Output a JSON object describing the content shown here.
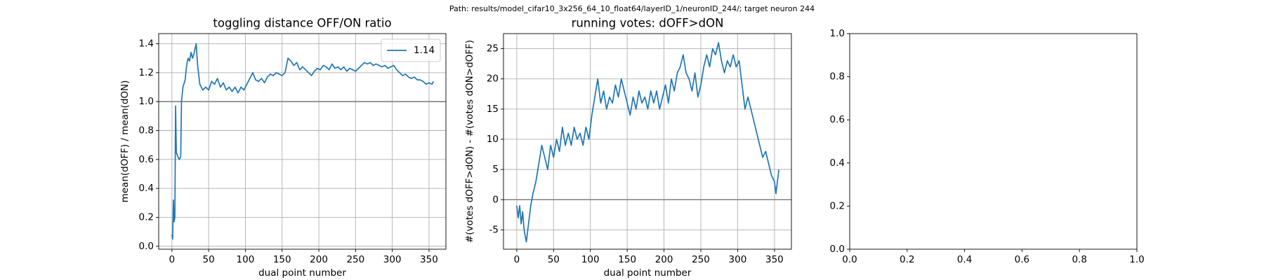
{
  "title": "Path: results/model_cifar10_3x256_64_10_float64/layerID_1/neuronID_244/; target neuron 244",
  "chart_data": [
    {
      "type": "line",
      "title": "toggling distance OFF/ON ratio",
      "xlabel": "dual point number",
      "ylabel": "mean(dOFF) / mean(dON)",
      "xlim": [
        -18,
        373
      ],
      "ylim": [
        -0.02,
        1.47
      ],
      "xticks": [
        0,
        50,
        100,
        150,
        200,
        250,
        300,
        350
      ],
      "yticks": [
        {
          "value": 0,
          "label": "0.0"
        },
        {
          "value": 0.2,
          "label": "0.2"
        },
        {
          "value": 0.4,
          "label": "0.4"
        },
        {
          "value": 0.6,
          "label": "0.6"
        },
        {
          "value": 0.8,
          "label": "0.8"
        },
        {
          "value": 1,
          "label": "1.0"
        },
        {
          "value": 1.2,
          "label": "1.2"
        },
        {
          "value": 1.4,
          "label": "1.4"
        }
      ],
      "grid": true,
      "legend": "upper right",
      "hline": 1,
      "hline_color": "#808080",
      "x": [
        0,
        1,
        2,
        3,
        4,
        5,
        6,
        8,
        10,
        12,
        13,
        15,
        18,
        20,
        22,
        24,
        26,
        28,
        30,
        33,
        35,
        38,
        42,
        46,
        50,
        54,
        58,
        62,
        66,
        70,
        74,
        78,
        82,
        86,
        90,
        94,
        98,
        102,
        106,
        110,
        114,
        118,
        122,
        126,
        130,
        134,
        138,
        142,
        146,
        150,
        154,
        158,
        162,
        166,
        170,
        174,
        178,
        182,
        186,
        190,
        194,
        198,
        202,
        206,
        210,
        214,
        218,
        222,
        226,
        230,
        234,
        238,
        242,
        246,
        250,
        254,
        258,
        262,
        266,
        270,
        274,
        278,
        282,
        286,
        290,
        294,
        298,
        302,
        306,
        310,
        314,
        318,
        322,
        326,
        330,
        334,
        338,
        342,
        346,
        350,
        354,
        356
      ],
      "series": [
        {
          "name": "1.14",
          "color": "#1f77b4",
          "values": [
            0.08,
            0.05,
            0.32,
            0.17,
            0.2,
            0.97,
            0.65,
            0.62,
            0.6,
            0.62,
            1.0,
            1.1,
            1.15,
            1.25,
            1.3,
            1.28,
            1.34,
            1.3,
            1.33,
            1.4,
            1.25,
            1.12,
            1.08,
            1.1,
            1.08,
            1.14,
            1.12,
            1.16,
            1.1,
            1.13,
            1.08,
            1.1,
            1.07,
            1.1,
            1.06,
            1.1,
            1.08,
            1.12,
            1.16,
            1.2,
            1.15,
            1.14,
            1.16,
            1.13,
            1.17,
            1.19,
            1.18,
            1.2,
            1.19,
            1.18,
            1.2,
            1.3,
            1.28,
            1.25,
            1.27,
            1.22,
            1.24,
            1.22,
            1.2,
            1.18,
            1.21,
            1.23,
            1.22,
            1.25,
            1.24,
            1.22,
            1.26,
            1.23,
            1.24,
            1.22,
            1.24,
            1.21,
            1.23,
            1.22,
            1.21,
            1.23,
            1.25,
            1.27,
            1.26,
            1.27,
            1.25,
            1.26,
            1.25,
            1.24,
            1.25,
            1.23,
            1.24,
            1.25,
            1.22,
            1.2,
            1.18,
            1.19,
            1.17,
            1.16,
            1.17,
            1.15,
            1.15,
            1.14,
            1.12,
            1.13,
            1.12,
            1.14
          ]
        }
      ]
    },
    {
      "type": "line",
      "title": "running votes: dOFF>dON",
      "xlabel": "dual point number",
      "ylabel": "#(votes dOFF>dON) - #(votes dON>dOFF)",
      "xlim": [
        -18,
        373
      ],
      "ylim": [
        -8.2,
        27.5
      ],
      "xticks": [
        0,
        50,
        100,
        150,
        200,
        250,
        300,
        350
      ],
      "yticks": [
        -5,
        0,
        5,
        10,
        15,
        20,
        25
      ],
      "grid": true,
      "hline": 0,
      "hline_color": "#808080",
      "x": [
        0,
        2,
        4,
        6,
        8,
        10,
        13,
        16,
        19,
        22,
        26,
        30,
        34,
        38,
        42,
        46,
        50,
        54,
        58,
        62,
        66,
        70,
        74,
        78,
        82,
        86,
        90,
        94,
        98,
        102,
        106,
        110,
        114,
        118,
        122,
        126,
        130,
        134,
        138,
        142,
        146,
        150,
        154,
        158,
        162,
        166,
        170,
        174,
        178,
        182,
        186,
        190,
        194,
        198,
        202,
        206,
        210,
        214,
        218,
        222,
        226,
        230,
        234,
        238,
        242,
        246,
        250,
        254,
        258,
        262,
        266,
        270,
        274,
        278,
        282,
        286,
        290,
        294,
        298,
        302,
        306,
        310,
        314,
        318,
        322,
        326,
        330,
        334,
        338,
        342,
        346,
        350,
        352,
        356
      ],
      "series": [
        {
          "color": "#1f77b4",
          "values": [
            -1,
            -3,
            -1,
            -4,
            -2,
            -5,
            -7,
            -4,
            -1,
            1,
            3,
            6,
            9,
            7,
            5,
            9,
            7,
            10,
            8,
            12,
            9,
            11,
            9,
            12,
            10,
            11,
            9,
            12,
            10,
            14,
            17,
            20,
            16,
            18,
            15,
            17,
            16,
            19,
            17,
            20,
            18,
            16,
            14,
            17,
            15,
            18,
            16,
            17,
            15,
            18,
            16,
            18,
            15,
            17,
            19,
            16,
            20,
            18,
            21,
            22,
            24,
            21,
            20,
            18,
            21,
            17,
            19,
            22,
            24,
            22,
            25,
            24,
            26,
            23,
            21,
            23,
            22,
            24,
            22,
            23,
            19,
            15,
            17,
            15,
            13,
            11,
            9,
            7,
            8,
            6,
            4,
            3,
            1,
            5
          ]
        }
      ]
    },
    {
      "type": "line",
      "xlim": [
        0,
        1
      ],
      "ylim": [
        0,
        1
      ],
      "xticks": [
        {
          "value": 0,
          "label": "0.0"
        },
        {
          "value": 0.2,
          "label": "0.2"
        },
        {
          "value": 0.4,
          "label": "0.4"
        },
        {
          "value": 0.6,
          "label": "0.6"
        },
        {
          "value": 0.8,
          "label": "0.8"
        },
        {
          "value": 1,
          "label": "1.0"
        }
      ],
      "yticks": [
        {
          "value": 0,
          "label": "0.0"
        },
        {
          "value": 0.2,
          "label": "0.2"
        },
        {
          "value": 0.4,
          "label": "0.4"
        },
        {
          "value": 0.6,
          "label": "0.6"
        },
        {
          "value": 0.8,
          "label": "0.8"
        },
        {
          "value": 1,
          "label": "1.0"
        }
      ],
      "grid": false,
      "series": []
    }
  ]
}
